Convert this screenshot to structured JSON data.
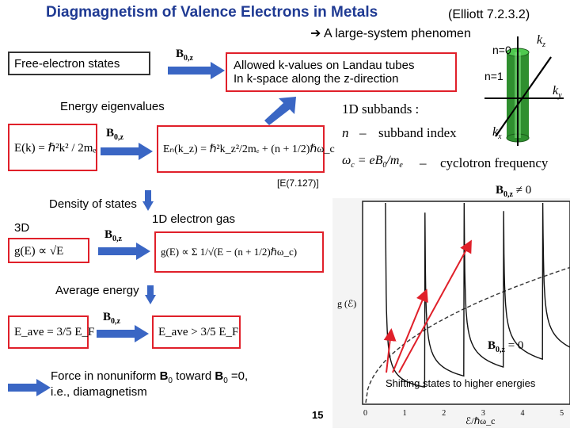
{
  "slide": {
    "title": "Diagmagnetism of Valence Electrons in Metals",
    "reference": "(Elliott 7.2.3.2)",
    "subtitle": "A large-system phenomen",
    "page_number": "15"
  },
  "labels": {
    "free_electron_states": "Free-electron states",
    "allowed_k": "Allowed k-values on Landau tubes",
    "in_k_space": "In k-space along  the z-direction",
    "energy_eigenvalues": "Energy eigenvalues",
    "density_of_states": "Density of states",
    "three_d": "3D",
    "one_d": "1D electron gas",
    "average_energy": "Average energy",
    "force_line1": "Force in nonuniform  B0 toward B0 =0,",
    "force_line2": "i.e., diamagnetism",
    "shifting": "Shifting states to higher energies",
    "eq_ref": "[E(7.127)]"
  },
  "tube_labels": {
    "n0": "n=0",
    "n1": "n=1",
    "kz": "k",
    "ky": "k",
    "kx": "k"
  },
  "subbands": {
    "line1": "1D  subbands :",
    "n_label": "n",
    "n_desc": "subband index",
    "omega_desc": "cyclotron frequency"
  },
  "field_labels": {
    "b0z": "B",
    "sub": "0,z",
    "neq0": "≠ 0",
    "eq0": "= 0"
  },
  "equations": {
    "e_free": "E(k) = ℏ²k² / 2mₑ",
    "e_n": "Eₙ(k_z) = ℏ²k_z²/2mₑ + (n + 1/2)ℏω_c",
    "g_3d": "g(E) ∝ √E",
    "g_1d": "g(E) ∝ Σ 1/√(E − (n + 1/2)ℏω_c)",
    "e_ave_free": "E_ave = 3/5 E_F",
    "e_ave_field": "E_ave > 3/5 E_F"
  },
  "plot": {
    "y_label": "g (ℰ)",
    "x_label": "ℰ/ℏω_c",
    "x_ticks": [
      "0",
      "1",
      "2",
      "3",
      "4",
      "5"
    ]
  }
}
